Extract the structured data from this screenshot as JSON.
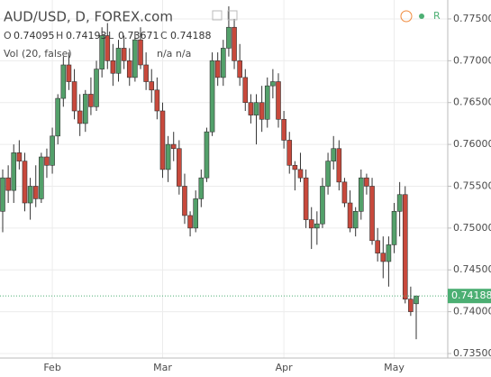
{
  "chart_data": {
    "type": "candlestick",
    "title": "AUD/USD, D, FOREX.com",
    "ohlc_labels": [
      "O",
      "H",
      "L",
      "C"
    ],
    "volume_label": "Vol (20, false)",
    "volume_values": "n/a n/a",
    "realtime_flag": "R",
    "categories": [
      null,
      null,
      null,
      null,
      null,
      null,
      null,
      null,
      null,
      "Feb",
      null,
      null,
      null,
      null,
      null,
      null,
      null,
      null,
      null,
      null,
      null,
      null,
      null,
      null,
      null,
      null,
      null,
      null,
      null,
      "Mar",
      null,
      null,
      null,
      null,
      null,
      null,
      null,
      null,
      null,
      null,
      null,
      null,
      null,
      null,
      null,
      null,
      null,
      null,
      null,
      null,
      null,
      "Apr",
      null,
      null,
      null,
      null,
      null,
      null,
      null,
      null,
      null,
      null,
      null,
      null,
      null,
      null,
      null,
      null,
      null,
      null,
      null,
      "May",
      null,
      null,
      null,
      null
    ],
    "open": [
      0.752,
      0.756,
      0.7545,
      0.759,
      0.758,
      0.753,
      0.755,
      0.7535,
      0.7585,
      0.7575,
      0.761,
      0.7655,
      0.7695,
      0.7675,
      0.764,
      0.7625,
      0.766,
      0.7645,
      0.769,
      0.773,
      0.77,
      0.7685,
      0.7715,
      0.77,
      0.768,
      0.7725,
      0.7695,
      0.7675,
      0.7665,
      0.764,
      0.757,
      0.76,
      0.7595,
      0.755,
      0.7515,
      0.75,
      0.7535,
      0.756,
      0.7615,
      0.77,
      0.768,
      0.7715,
      0.774,
      0.77,
      0.768,
      0.765,
      0.7635,
      0.765,
      0.763,
      0.767,
      0.7675,
      0.763,
      0.7605,
      0.7575,
      0.757,
      0.756,
      0.751,
      0.75,
      0.7505,
      0.755,
      0.758,
      0.7595,
      0.7555,
      0.753,
      0.75,
      0.752,
      0.756,
      0.755,
      0.7485,
      0.747,
      0.746,
      0.748,
      0.752,
      0.754,
      0.7415,
      0.74095
    ],
    "high": [
      0.757,
      0.7575,
      0.76,
      0.7605,
      0.759,
      0.756,
      0.7575,
      0.759,
      0.7595,
      0.762,
      0.766,
      0.7705,
      0.771,
      0.769,
      0.766,
      0.7665,
      0.768,
      0.77,
      0.774,
      0.7745,
      0.772,
      0.7725,
      0.773,
      0.7715,
      0.7735,
      0.774,
      0.771,
      0.769,
      0.768,
      0.765,
      0.761,
      0.7615,
      0.7605,
      0.7565,
      0.752,
      0.7545,
      0.757,
      0.762,
      0.771,
      0.771,
      0.7725,
      0.7765,
      0.775,
      0.772,
      0.769,
      0.766,
      0.766,
      0.767,
      0.768,
      0.769,
      0.7685,
      0.764,
      0.7615,
      0.758,
      0.759,
      0.757,
      0.7525,
      0.752,
      0.756,
      0.759,
      0.761,
      0.7605,
      0.756,
      0.7545,
      0.7525,
      0.757,
      0.7565,
      0.756,
      0.75,
      0.749,
      0.749,
      0.753,
      0.7555,
      0.755,
      0.743,
      0.74193
    ],
    "low": [
      0.7495,
      0.753,
      0.753,
      0.757,
      0.752,
      0.751,
      0.7525,
      0.753,
      0.756,
      0.7565,
      0.76,
      0.7645,
      0.7665,
      0.763,
      0.761,
      0.7615,
      0.7635,
      0.764,
      0.768,
      0.769,
      0.767,
      0.7675,
      0.769,
      0.767,
      0.7675,
      0.769,
      0.7665,
      0.765,
      0.763,
      0.756,
      0.7555,
      0.758,
      0.754,
      0.7505,
      0.749,
      0.7495,
      0.7525,
      0.7555,
      0.761,
      0.767,
      0.767,
      0.7705,
      0.769,
      0.767,
      0.764,
      0.7625,
      0.76,
      0.7615,
      0.762,
      0.7655,
      0.762,
      0.7595,
      0.7565,
      0.7545,
      0.7555,
      0.75,
      0.7475,
      0.748,
      0.75,
      0.754,
      0.757,
      0.7545,
      0.7525,
      0.7495,
      0.749,
      0.751,
      0.754,
      0.748,
      0.746,
      0.744,
      0.743,
      0.747,
      0.749,
      0.741,
      0.7395,
      0.73671
    ],
    "close": [
      0.756,
      0.7545,
      0.759,
      0.758,
      0.753,
      0.755,
      0.7535,
      0.7585,
      0.7575,
      0.761,
      0.7655,
      0.7695,
      0.7675,
      0.764,
      0.7625,
      0.766,
      0.7645,
      0.769,
      0.773,
      0.77,
      0.7685,
      0.7715,
      0.77,
      0.768,
      0.7725,
      0.7695,
      0.7675,
      0.7665,
      0.764,
      0.757,
      0.76,
      0.7595,
      0.755,
      0.7515,
      0.75,
      0.7535,
      0.756,
      0.7615,
      0.77,
      0.768,
      0.7715,
      0.774,
      0.77,
      0.768,
      0.765,
      0.7635,
      0.765,
      0.763,
      0.767,
      0.7675,
      0.763,
      0.7605,
      0.7575,
      0.757,
      0.756,
      0.751,
      0.75,
      0.7505,
      0.755,
      0.758,
      0.7595,
      0.7555,
      0.753,
      0.75,
      0.752,
      0.756,
      0.755,
      0.7485,
      0.747,
      0.746,
      0.748,
      0.752,
      0.754,
      0.7415,
      0.74,
      0.74188
    ],
    "up_color": "#53a06a",
    "down_color": "#c8493c",
    "last_price_color": "#4caf73",
    "ylim": [
      0.73446,
      0.77726
    ],
    "yticks": [
      {
        "value": 0.735,
        "label": "0.73500"
      },
      {
        "value": 0.74,
        "label": "0.74000"
      },
      {
        "value": 0.745,
        "label": "0.74500"
      },
      {
        "value": 0.75,
        "label": "0.75000"
      },
      {
        "value": 0.755,
        "label": "0.75500"
      },
      {
        "value": 0.76,
        "label": "0.76000"
      },
      {
        "value": 0.765,
        "label": "0.76500"
      },
      {
        "value": 0.77,
        "label": "0.77000"
      },
      {
        "value": 0.775,
        "label": "0.77500"
      }
    ],
    "grid": true
  }
}
